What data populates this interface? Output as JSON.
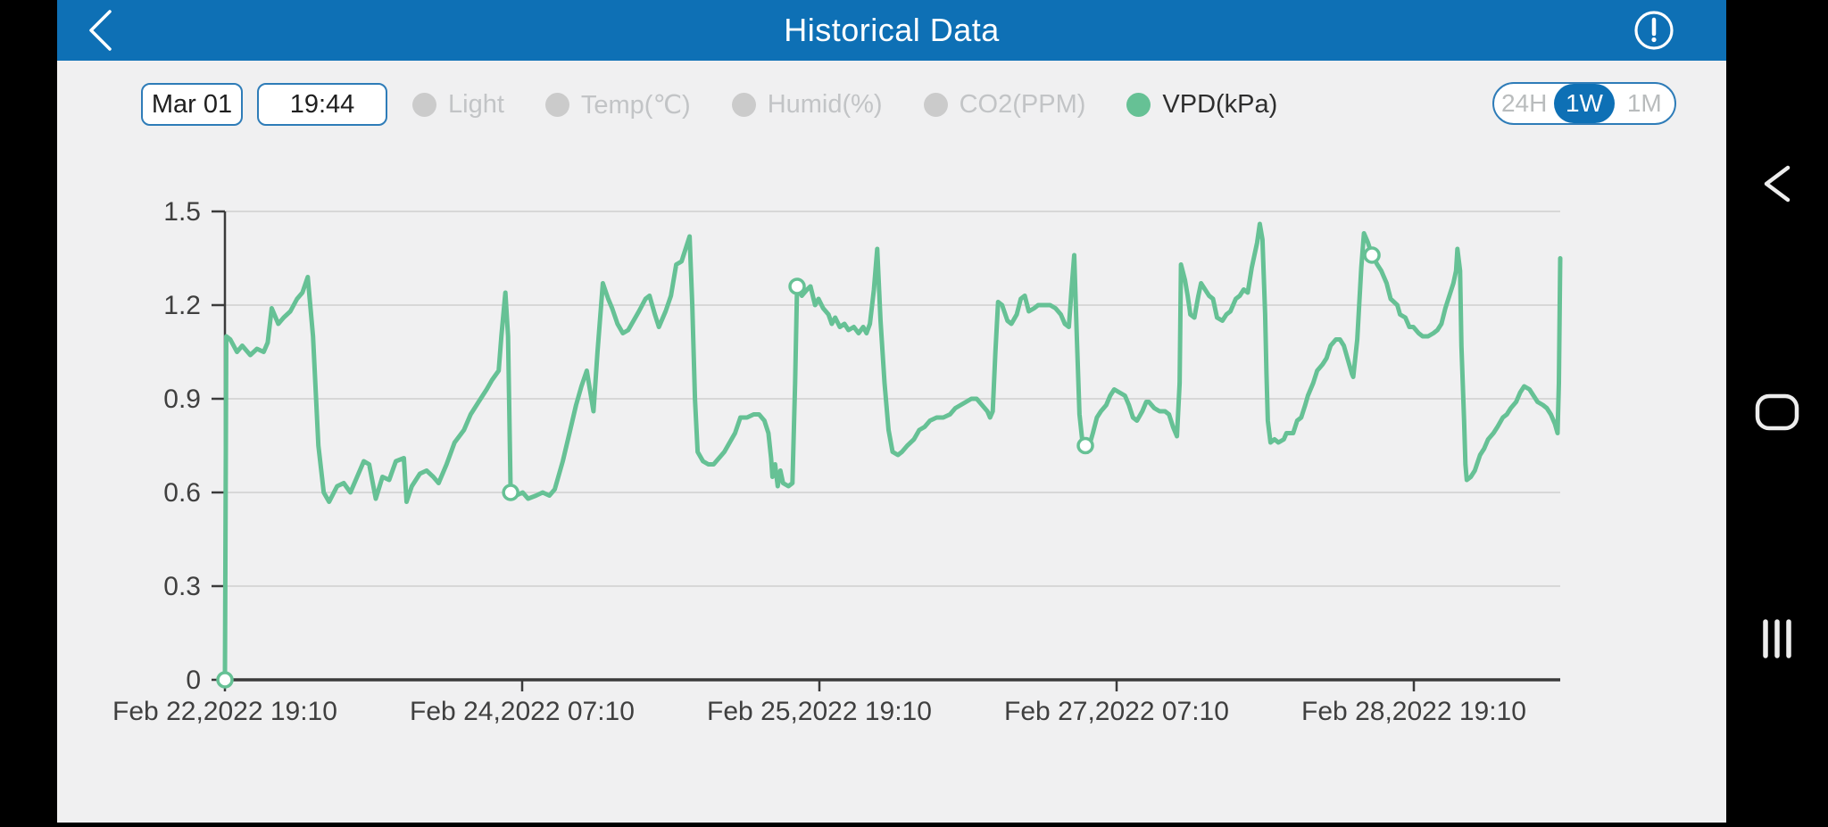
{
  "header": {
    "title": "Historical Data"
  },
  "controls": {
    "date": "Mar 01",
    "time": "19:44"
  },
  "legend": {
    "items": [
      {
        "label": "Light",
        "active": false
      },
      {
        "label": "Temp(℃)",
        "active": false
      },
      {
        "label": "Humid(%)",
        "active": false
      },
      {
        "label": "CO2(PPM)",
        "active": false
      },
      {
        "label": "VPD(kPa)",
        "active": true
      }
    ]
  },
  "range_toggle": {
    "options": [
      {
        "label": "24H",
        "active": false
      },
      {
        "label": "1W",
        "active": true
      },
      {
        "label": "1M",
        "active": false
      }
    ]
  },
  "colors": {
    "header_blue": "#0e70b5",
    "accent_blue": "#2e7cb8",
    "line_green": "#66c195",
    "grid_gray": "#d7d7d7",
    "axis_dark": "#3b3b3b",
    "tick_label": "#3f3f3f",
    "inactive_gray": "#c2c4c6",
    "background": "#f0f0f1",
    "nav_black": "#000000"
  },
  "chart_data": {
    "type": "line",
    "series_name": "VPD(kPa)",
    "ylabel": "",
    "xlabel": "",
    "ylim": [
      0,
      1.5
    ],
    "y_ticks": [
      0,
      0.3,
      0.6,
      0.9,
      1.2,
      1.5
    ],
    "y_tick_labels": [
      "0",
      "0.3",
      "0.6",
      "0.9",
      "1.2",
      "1.5"
    ],
    "x_tick_labels": [
      "Feb 22,2022 19:10",
      "Feb 24,2022 07:10",
      "Feb 25,2022 19:10",
      "Feb 27,2022 07:10",
      "Feb 28,2022 19:10"
    ],
    "grid": true,
    "legend_position": "top",
    "points": [
      [
        0,
        0
      ],
      [
        0.001,
        1.1
      ],
      [
        0.004,
        1.09
      ],
      [
        0.009,
        1.05
      ],
      [
        0.013,
        1.07
      ],
      [
        0.019,
        1.04
      ],
      [
        0.024,
        1.06
      ],
      [
        0.029,
        1.05
      ],
      [
        0.032,
        1.08
      ],
      [
        0.035,
        1.19
      ],
      [
        0.04,
        1.14
      ],
      [
        0.044,
        1.16
      ],
      [
        0.049,
        1.18
      ],
      [
        0.054,
        1.22
      ],
      [
        0.058,
        1.24
      ],
      [
        0.062,
        1.29
      ],
      [
        0.066,
        1.1
      ],
      [
        0.07,
        0.75
      ],
      [
        0.074,
        0.6
      ],
      [
        0.078,
        0.57
      ],
      [
        0.084,
        0.62
      ],
      [
        0.089,
        0.63
      ],
      [
        0.094,
        0.6
      ],
      [
        0.099,
        0.65
      ],
      [
        0.104,
        0.7
      ],
      [
        0.108,
        0.69
      ],
      [
        0.113,
        0.58
      ],
      [
        0.118,
        0.65
      ],
      [
        0.123,
        0.64
      ],
      [
        0.128,
        0.7
      ],
      [
        0.134,
        0.71
      ],
      [
        0.136,
        0.57
      ],
      [
        0.14,
        0.62
      ],
      [
        0.146,
        0.66
      ],
      [
        0.151,
        0.67
      ],
      [
        0.156,
        0.65
      ],
      [
        0.16,
        0.63
      ],
      [
        0.166,
        0.69
      ],
      [
        0.172,
        0.76
      ],
      [
        0.179,
        0.8
      ],
      [
        0.184,
        0.85
      ],
      [
        0.19,
        0.89
      ],
      [
        0.196,
        0.93
      ],
      [
        0.2,
        0.96
      ],
      [
        0.205,
        0.99
      ],
      [
        0.207,
        1.1
      ],
      [
        0.21,
        1.24
      ],
      [
        0.212,
        1.1
      ],
      [
        0.214,
        0.6
      ],
      [
        0.218,
        0.59
      ],
      [
        0.223,
        0.6
      ],
      [
        0.227,
        0.58
      ],
      [
        0.233,
        0.59
      ],
      [
        0.238,
        0.6
      ],
      [
        0.243,
        0.59
      ],
      [
        0.247,
        0.61
      ],
      [
        0.253,
        0.7
      ],
      [
        0.258,
        0.79
      ],
      [
        0.263,
        0.88
      ],
      [
        0.267,
        0.94
      ],
      [
        0.271,
        0.99
      ],
      [
        0.276,
        0.86
      ],
      [
        0.279,
        1.05
      ],
      [
        0.283,
        1.27
      ],
      [
        0.287,
        1.22
      ],
      [
        0.29,
        1.19
      ],
      [
        0.294,
        1.14
      ],
      [
        0.298,
        1.11
      ],
      [
        0.302,
        1.12
      ],
      [
        0.306,
        1.15
      ],
      [
        0.31,
        1.18
      ],
      [
        0.315,
        1.22
      ],
      [
        0.318,
        1.23
      ],
      [
        0.322,
        1.17
      ],
      [
        0.325,
        1.13
      ],
      [
        0.33,
        1.18
      ],
      [
        0.334,
        1.23
      ],
      [
        0.338,
        1.33
      ],
      [
        0.342,
        1.34
      ],
      [
        0.345,
        1.38
      ],
      [
        0.348,
        1.42
      ],
      [
        0.35,
        1.2
      ],
      [
        0.352,
        0.9
      ],
      [
        0.354,
        0.73
      ],
      [
        0.358,
        0.7
      ],
      [
        0.362,
        0.69
      ],
      [
        0.366,
        0.69
      ],
      [
        0.37,
        0.71
      ],
      [
        0.374,
        0.73
      ],
      [
        0.378,
        0.76
      ],
      [
        0.382,
        0.79
      ],
      [
        0.386,
        0.84
      ],
      [
        0.391,
        0.84
      ],
      [
        0.396,
        0.85
      ],
      [
        0.4,
        0.85
      ],
      [
        0.404,
        0.83
      ],
      [
        0.407,
        0.79
      ],
      [
        0.409,
        0.71
      ],
      [
        0.41,
        0.65
      ],
      [
        0.412,
        0.69
      ],
      [
        0.414,
        0.62
      ],
      [
        0.416,
        0.67
      ],
      [
        0.418,
        0.63
      ],
      [
        0.422,
        0.62
      ],
      [
        0.425,
        0.63
      ],
      [
        0.427,
        0.95
      ],
      [
        0.4285,
        1.26
      ],
      [
        0.432,
        1.23
      ],
      [
        0.436,
        1.25
      ],
      [
        0.4385,
        1.26
      ],
      [
        0.442,
        1.2
      ],
      [
        0.4445,
        1.22
      ],
      [
        0.448,
        1.19
      ],
      [
        0.452,
        1.17
      ],
      [
        0.4545,
        1.14
      ],
      [
        0.457,
        1.16
      ],
      [
        0.4605,
        1.13
      ],
      [
        0.464,
        1.14
      ],
      [
        0.467,
        1.12
      ],
      [
        0.471,
        1.13
      ],
      [
        0.4745,
        1.11
      ],
      [
        0.478,
        1.13
      ],
      [
        0.4805,
        1.11
      ],
      [
        0.483,
        1.14
      ],
      [
        0.486,
        1.25
      ],
      [
        0.4885,
        1.38
      ],
      [
        0.491,
        1.15
      ],
      [
        0.494,
        0.95
      ],
      [
        0.497,
        0.8
      ],
      [
        0.5,
        0.73
      ],
      [
        0.504,
        0.72
      ],
      [
        0.507,
        0.73
      ],
      [
        0.511,
        0.75
      ],
      [
        0.516,
        0.77
      ],
      [
        0.52,
        0.8
      ],
      [
        0.524,
        0.81
      ],
      [
        0.528,
        0.83
      ],
      [
        0.533,
        0.84
      ],
      [
        0.538,
        0.84
      ],
      [
        0.543,
        0.85
      ],
      [
        0.547,
        0.87
      ],
      [
        0.551,
        0.88
      ],
      [
        0.555,
        0.89
      ],
      [
        0.559,
        0.9
      ],
      [
        0.563,
        0.9
      ],
      [
        0.567,
        0.88
      ],
      [
        0.571,
        0.86
      ],
      [
        0.573,
        0.84
      ],
      [
        0.575,
        0.86
      ],
      [
        0.577,
        1.05
      ],
      [
        0.579,
        1.21
      ],
      [
        0.582,
        1.2
      ],
      [
        0.586,
        1.15
      ],
      [
        0.589,
        1.14
      ],
      [
        0.593,
        1.17
      ],
      [
        0.596,
        1.22
      ],
      [
        0.599,
        1.23
      ],
      [
        0.602,
        1.18
      ],
      [
        0.606,
        1.19
      ],
      [
        0.609,
        1.2
      ],
      [
        0.614,
        1.2
      ],
      [
        0.618,
        1.2
      ],
      [
        0.622,
        1.19
      ],
      [
        0.626,
        1.17
      ],
      [
        0.629,
        1.14
      ],
      [
        0.632,
        1.13
      ],
      [
        0.634,
        1.25
      ],
      [
        0.636,
        1.36
      ],
      [
        0.638,
        1.1
      ],
      [
        0.64,
        0.85
      ],
      [
        0.642,
        0.77
      ],
      [
        0.6444,
        0.75
      ],
      [
        0.646,
        0.73
      ],
      [
        0.65,
        0.79
      ],
      [
        0.653,
        0.84
      ],
      [
        0.656,
        0.86
      ],
      [
        0.66,
        0.88
      ],
      [
        0.663,
        0.91
      ],
      [
        0.666,
        0.93
      ],
      [
        0.67,
        0.92
      ],
      [
        0.674,
        0.91
      ],
      [
        0.677,
        0.88
      ],
      [
        0.68,
        0.84
      ],
      [
        0.683,
        0.83
      ],
      [
        0.687,
        0.86
      ],
      [
        0.69,
        0.89
      ],
      [
        0.692,
        0.89
      ],
      [
        0.696,
        0.87
      ],
      [
        0.7,
        0.86
      ],
      [
        0.704,
        0.86
      ],
      [
        0.707,
        0.85
      ],
      [
        0.71,
        0.81
      ],
      [
        0.713,
        0.78
      ],
      [
        0.715,
        0.95
      ],
      [
        0.716,
        1.33
      ],
      [
        0.719,
        1.28
      ],
      [
        0.721,
        1.23
      ],
      [
        0.723,
        1.17
      ],
      [
        0.726,
        1.16
      ],
      [
        0.729,
        1.23
      ],
      [
        0.731,
        1.27
      ],
      [
        0.734,
        1.25
      ],
      [
        0.737,
        1.23
      ],
      [
        0.74,
        1.22
      ],
      [
        0.743,
        1.16
      ],
      [
        0.747,
        1.15
      ],
      [
        0.75,
        1.17
      ],
      [
        0.753,
        1.18
      ],
      [
        0.757,
        1.22
      ],
      [
        0.76,
        1.23
      ],
      [
        0.763,
        1.25
      ],
      [
        0.766,
        1.24
      ],
      [
        0.769,
        1.32
      ],
      [
        0.773,
        1.4
      ],
      [
        0.775,
        1.46
      ],
      [
        0.777,
        1.41
      ],
      [
        0.779,
        1.17
      ],
      [
        0.78,
        0.98
      ],
      [
        0.781,
        0.83
      ],
      [
        0.783,
        0.76
      ],
      [
        0.786,
        0.77
      ],
      [
        0.789,
        0.76
      ],
      [
        0.793,
        0.77
      ],
      [
        0.795,
        0.79
      ],
      [
        0.8,
        0.79
      ],
      [
        0.803,
        0.83
      ],
      [
        0.806,
        0.84
      ],
      [
        0.809,
        0.88
      ],
      [
        0.811,
        0.91
      ],
      [
        0.815,
        0.95
      ],
      [
        0.818,
        0.99
      ],
      [
        0.822,
        1.01
      ],
      [
        0.825,
        1.03
      ],
      [
        0.828,
        1.07
      ],
      [
        0.832,
        1.09
      ],
      [
        0.835,
        1.09
      ],
      [
        0.838,
        1.07
      ],
      [
        0.842,
        1.01
      ],
      [
        0.844,
        0.98
      ],
      [
        0.845,
        0.97
      ],
      [
        0.847,
        1.05
      ],
      [
        0.848,
        1.09
      ],
      [
        0.851,
        1.32
      ],
      [
        0.853,
        1.43
      ],
      [
        0.856,
        1.4
      ],
      [
        0.859,
        1.36
      ],
      [
        0.863,
        1.33
      ],
      [
        0.866,
        1.31
      ],
      [
        0.87,
        1.27
      ],
      [
        0.873,
        1.22
      ],
      [
        0.878,
        1.2
      ],
      [
        0.88,
        1.17
      ],
      [
        0.884,
        1.16
      ],
      [
        0.887,
        1.13
      ],
      [
        0.89,
        1.13
      ],
      [
        0.894,
        1.11
      ],
      [
        0.897,
        1.1
      ],
      [
        0.901,
        1.1
      ],
      [
        0.905,
        1.11
      ],
      [
        0.908,
        1.12
      ],
      [
        0.911,
        1.14
      ],
      [
        0.914,
        1.19
      ],
      [
        0.917,
        1.23
      ],
      [
        0.92,
        1.27
      ],
      [
        0.922,
        1.31
      ],
      [
        0.923,
        1.38
      ],
      [
        0.925,
        1.31
      ],
      [
        0.926,
        1.07
      ],
      [
        0.928,
        0.83
      ],
      [
        0.929,
        0.69
      ],
      [
        0.93,
        0.64
      ],
      [
        0.933,
        0.65
      ],
      [
        0.936,
        0.67
      ],
      [
        0.94,
        0.72
      ],
      [
        0.943,
        0.74
      ],
      [
        0.946,
        0.77
      ],
      [
        0.95,
        0.79
      ],
      [
        0.953,
        0.81
      ],
      [
        0.957,
        0.84
      ],
      [
        0.96,
        0.85
      ],
      [
        0.963,
        0.87
      ],
      [
        0.967,
        0.89
      ],
      [
        0.97,
        0.92
      ],
      [
        0.973,
        0.94
      ],
      [
        0.977,
        0.93
      ],
      [
        0.98,
        0.91
      ],
      [
        0.983,
        0.89
      ],
      [
        0.987,
        0.88
      ],
      [
        0.99,
        0.87
      ],
      [
        0.993,
        0.85
      ],
      [
        0.996,
        0.82
      ],
      [
        0.998,
        0.79
      ],
      [
        0.999,
        0.95
      ],
      [
        1,
        1.35
      ]
    ],
    "markers": [
      [
        0,
        0
      ],
      [
        0.214,
        0.6
      ],
      [
        0.4285,
        1.26
      ],
      [
        0.6444,
        0.75
      ],
      [
        0.859,
        1.36
      ]
    ]
  }
}
